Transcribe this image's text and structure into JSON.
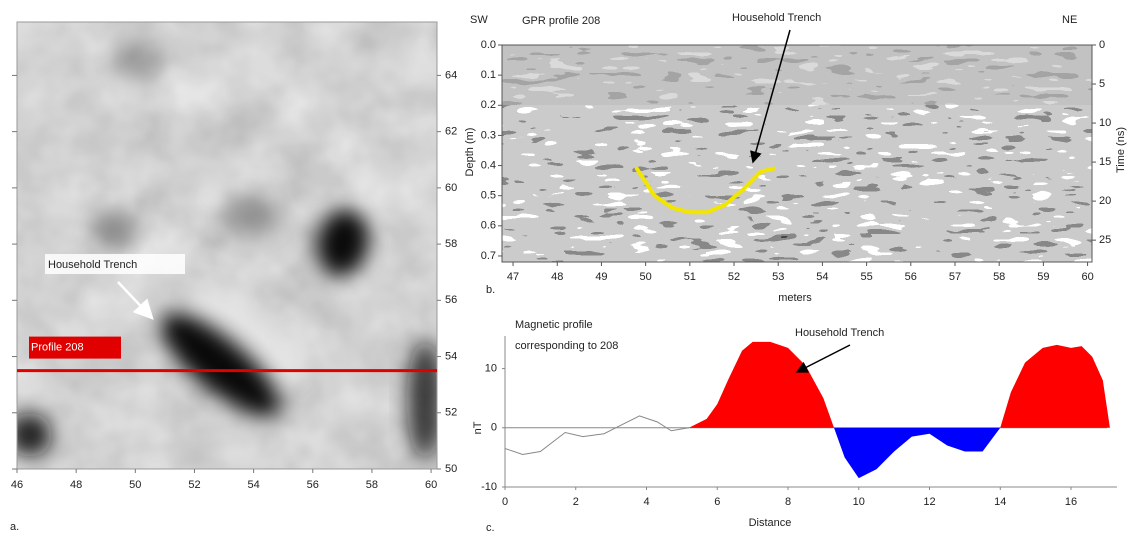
{
  "chart_data": [
    {
      "type": "map",
      "panel_label": "a.",
      "xlim": [
        46,
        60.2
      ],
      "xticks": [
        46,
        48,
        50,
        52,
        54,
        56,
        58,
        60
      ],
      "ylim": [
        50,
        65.9
      ],
      "yticks": [
        50,
        52,
        54,
        56,
        58,
        60,
        62,
        64
      ],
      "annotation": "Household Trench",
      "profile_line": {
        "label": "Profile 208",
        "y": 53.5,
        "color": "#e00000"
      }
    },
    {
      "type": "radargram",
      "panel_label": "b.",
      "title": "GPR profile 208",
      "left_end": "SW",
      "right_end": "NE",
      "annotation": "Household Trench",
      "xlabel": "meters",
      "ylabel": "Depth (m)",
      "y2label": "Time (ns)",
      "xlim": [
        46.75,
        60.1
      ],
      "xticks": [
        47,
        48,
        49,
        50,
        51,
        52,
        53,
        54,
        55,
        56,
        57,
        58,
        59,
        60
      ],
      "ylim": [
        0,
        0.72
      ],
      "yticks": [
        {
          "value": 0,
          "label": "0.0"
        },
        0.1,
        0.2,
        0.3,
        0.4,
        0.5,
        0.6,
        0.7
      ],
      "y2lim": [
        0,
        27.8
      ],
      "y2ticks": [
        0,
        5,
        10,
        15,
        20,
        25
      ],
      "series": [
        {
          "color": "#f2e600",
          "x": [
            49.8,
            50.2,
            50.6,
            51,
            51.4,
            51.8,
            52.2,
            52.6,
            52.9
          ],
          "values": [
            0.41,
            0.5,
            0.54,
            0.555,
            0.555,
            0.53,
            0.48,
            0.42,
            0.41
          ]
        }
      ]
    },
    {
      "type": "area",
      "panel_label": "c.",
      "title_lines": [
        "Magnetic profile",
        "corresponding to 208"
      ],
      "annotation": "Household Trench",
      "xlabel": "Distance",
      "ylabel": "nT",
      "xlim": [
        0,
        17.3
      ],
      "xticks": [
        0,
        2,
        4,
        6,
        8,
        10,
        12,
        14,
        16
      ],
      "ylim": [
        -10,
        15.5
      ],
      "yticks": [
        -10,
        0,
        10
      ],
      "series": [
        {
          "color": "#888888",
          "x": [
            0,
            0.5,
            1,
            1.7,
            2.2,
            2.8,
            3.3,
            3.8,
            4.3,
            4.7,
            5.2
          ],
          "values": [
            -3.5,
            -4.5,
            -4,
            -0.8,
            -1.5,
            -1,
            0.5,
            2,
            1,
            -0.5,
            0
          ]
        },
        {
          "color": "#ff0000",
          "negative_color": "#0000ff",
          "fill": true,
          "x": [
            5.2,
            5.7,
            6,
            6.3,
            6.7,
            7,
            7.5,
            8,
            8.5,
            9,
            9.3,
            9.6,
            10,
            10.5,
            11,
            11.5,
            12,
            12.5,
            13,
            13.5,
            14,
            14.3,
            14.7,
            15.2,
            15.6,
            16,
            16.3,
            16.6,
            16.9,
            17.1
          ],
          "values": [
            0,
            1.5,
            4,
            8,
            13,
            14.5,
            14.5,
            13.5,
            10.5,
            5,
            0,
            -5,
            -8.5,
            -7,
            -4,
            -1.5,
            -1,
            -3,
            -4,
            -4,
            0,
            6,
            11,
            13.5,
            14,
            13.5,
            13.8,
            12,
            8,
            0
          ]
        }
      ]
    }
  ]
}
